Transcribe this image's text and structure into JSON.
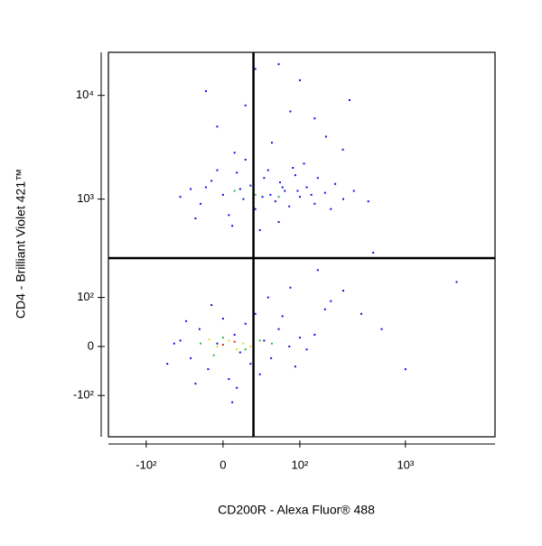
{
  "chart_data": {
    "type": "scatter",
    "x_label": "CD200R - Alexa Fluor® 488",
    "y_label": "CD4 - Brilliant Violet 421™",
    "scale": "biexponential",
    "xlim": [
      -232,
      6830
    ],
    "ylim": [
      -277,
      26000
    ],
    "xticks": [
      {
        "value": -100,
        "label": "-10²"
      },
      0,
      {
        "value": 100,
        "label": "10²"
      },
      {
        "value": 1000,
        "label": "10³"
      }
    ],
    "yticks": [
      {
        "value": -100,
        "label": "-10²"
      },
      0,
      {
        "value": 100,
        "label": "10²"
      },
      {
        "value": 1000,
        "label": "10³"
      },
      {
        "value": 10000,
        "label": "10⁴"
      }
    ],
    "quadrant_gate": {
      "x": 28,
      "y": 265
    },
    "series": [
      {
        "color": "#1010e0",
        "x": [
          -30,
          -20,
          -10,
          0,
          5,
          12,
          18,
          25,
          30,
          40,
          48,
          55,
          62,
          70,
          78,
          90,
          100,
          117,
          140,
          176,
          220,
          262,
          330,
          450,
          -42,
          -25,
          8,
          35,
          60,
          85,
          110,
          20,
          -5,
          45,
          150,
          200,
          -15,
          15,
          38,
          66,
          95,
          130,
          -15,
          30,
          60,
          100,
          140,
          -5,
          20,
          180,
          260,
          50,
          10,
          300,
          80,
          -42,
          -30,
          -21,
          -13,
          -5,
          0,
          5,
          10,
          15,
          20,
          25,
          30,
          40,
          49,
          60,
          78,
          100,
          117,
          -35,
          -10,
          12,
          35,
          66,
          90,
          140,
          176,
          262,
          387,
          600,
          1000,
          3000,
          -60,
          -50,
          -25,
          45,
          80,
          150,
          200,
          500,
          8
        ],
        "y": [
          1250,
          900,
          1500,
          1100,
          700,
          1800,
          1000,
          1350,
          800,
          1600,
          1100,
          950,
          1450,
          1200,
          850,
          1700,
          1050,
          1300,
          900,
          1150,
          1400,
          1000,
          1200,
          950,
          1050,
          650,
          550,
          500,
          600,
          2000,
          2200,
          2400,
          1900,
          1900,
          1600,
          800,
          1300,
          1250,
          1050,
          1300,
          1200,
          1100,
          11000,
          18000,
          20000,
          14000,
          6000,
          5000,
          8000,
          4000,
          3000,
          3500,
          2800,
          9000,
          7000,
          10,
          -20,
          30,
          -40,
          5,
          50,
          -60,
          20,
          -10,
          40,
          -30,
          60,
          10,
          -20,
          30,
          0,
          15,
          -5,
          45,
          80,
          -80,
          -50,
          55,
          -35,
          20,
          70,
          120,
          60,
          30,
          -40,
          150,
          -30,
          5,
          -70,
          100,
          130,
          200,
          90,
          300,
          -120
        ]
      },
      {
        "color": "#20c040",
        "x": [
          -20,
          0,
          20,
          35,
          -8,
          50,
          30,
          60,
          10
        ],
        "y": [
          5,
          15,
          -5,
          10,
          -15,
          5,
          1100,
          1050,
          1200
        ]
      },
      {
        "color": "#e8d820",
        "x": [
          -5,
          5,
          12,
          18,
          -12,
          25
        ],
        "y": [
          0,
          10,
          -5,
          5,
          12,
          0
        ]
      },
      {
        "color": "#e03010",
        "x": [
          0,
          10
        ],
        "y": [
          3,
          8
        ]
      }
    ]
  }
}
